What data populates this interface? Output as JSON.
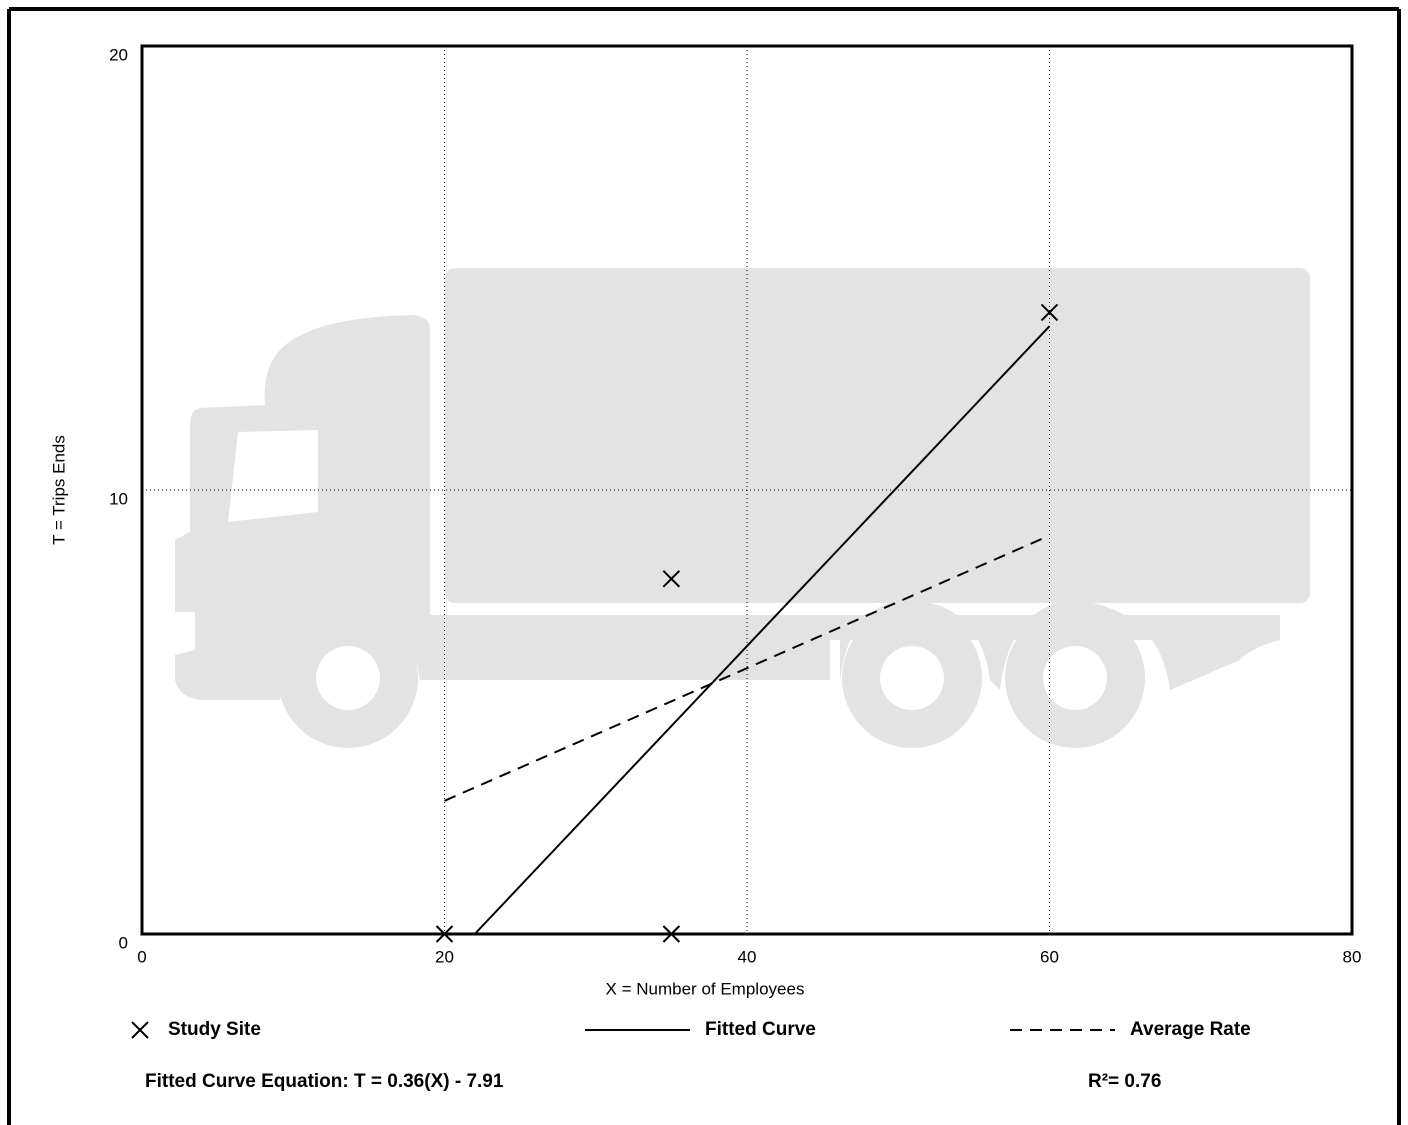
{
  "chart_data": {
    "type": "scatter",
    "x_label": "X = Number of Employees",
    "y_label": "T = Trips Ends",
    "xlim": [
      0,
      80
    ],
    "xticks": [
      0,
      20,
      40,
      60,
      80
    ],
    "ylim": [
      0,
      20
    ],
    "yticks": [
      0,
      10,
      20
    ],
    "grid": true,
    "series": [
      {
        "name": "Study Site",
        "style": "marker",
        "color": "#000000",
        "x": [
          20,
          35,
          35,
          60
        ],
        "values": [
          0,
          0,
          8,
          14
        ]
      },
      {
        "name": "Fitted Curve",
        "style": "solid",
        "color": "#000000",
        "x": [
          22,
          60
        ],
        "values": [
          0,
          13.69
        ]
      },
      {
        "name": "Average Rate",
        "style": "dashed",
        "color": "#000000",
        "x": [
          20,
          59.5
        ],
        "values": [
          3.0,
          8.9
        ]
      }
    ],
    "equation": "Fitted Curve Equation: T = 0.36(X) - 7.91",
    "r_squared": "R²= 0.76"
  }
}
